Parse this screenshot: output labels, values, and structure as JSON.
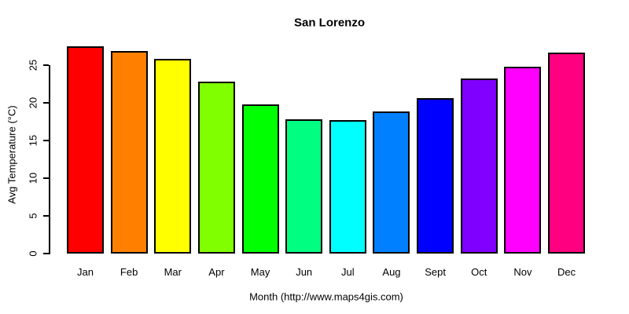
{
  "chart_data": {
    "type": "bar",
    "title": "San Lorenzo",
    "xlabel": "Month (http://www.maps4gis.com)",
    "ylabel": "Avg Temperature (°C)",
    "categories": [
      "Jan",
      "Feb",
      "Mar",
      "Apr",
      "May",
      "Jun",
      "Jul",
      "Aug",
      "Sept",
      "Oct",
      "Nov",
      "Dec"
    ],
    "values": [
      27.5,
      26.9,
      25.8,
      22.8,
      19.8,
      17.8,
      17.7,
      18.9,
      20.6,
      23.2,
      24.8,
      26.7
    ],
    "colors": [
      "#FF0000",
      "#FF8000",
      "#FFFF00",
      "#80FF00",
      "#00FF00",
      "#00FF80",
      "#00FFFF",
      "#0080FF",
      "#0000FF",
      "#8000FF",
      "#FF00FF",
      "#FF0080"
    ],
    "yticks": [
      0,
      5,
      10,
      15,
      20,
      25
    ],
    "ylim": [
      0,
      28
    ],
    "grid": false,
    "legend_position": "none",
    "bar_border_color": "#000000",
    "text_color": "#000000",
    "background_color": "#FFFFFF"
  }
}
